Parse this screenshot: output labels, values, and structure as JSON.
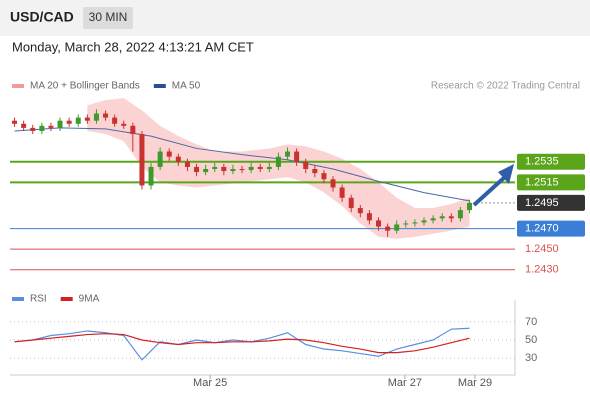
{
  "header": {
    "symbol": "USD/CAD",
    "interval": "30 MIN",
    "timestamp": "Monday, March 28, 2022 4:13:21 AM CET"
  },
  "chart_data": [
    {
      "type": "candlestick",
      "legend": [
        {
          "name": "MA 20 + Bollinger Bands",
          "color": "#f29a9a"
        },
        {
          "name": "MA 50",
          "color": "#2e4f8f"
        }
      ],
      "credit": "Research © 2022 Trading Central",
      "up_color": "#3f9a2c",
      "down_color": "#c8332f",
      "xlim": [
        -0.5,
        55
      ],
      "ylim": [
        1.242,
        1.26
      ],
      "candles": [
        [
          1.2575,
          1.2578,
          1.2569,
          1.2572
        ],
        [
          1.2572,
          1.2575,
          1.2565,
          1.2568
        ],
        [
          1.2568,
          1.2571,
          1.2562,
          1.2565
        ],
        [
          1.2565,
          1.2573,
          1.2562,
          1.257
        ],
        [
          1.257,
          1.2573,
          1.2565,
          1.2568
        ],
        [
          1.2568,
          1.2578,
          1.2565,
          1.2575
        ],
        [
          1.2575,
          1.2578,
          1.2569,
          1.2572
        ],
        [
          1.2572,
          1.2581,
          1.2569,
          1.2578
        ],
        [
          1.2578,
          1.2581,
          1.2572,
          1.2575
        ],
        [
          1.2575,
          1.2586,
          1.2572,
          1.2582
        ],
        [
          1.2582,
          1.2585,
          1.2575,
          1.2578
        ],
        [
          1.2578,
          1.2581,
          1.2569,
          1.2572
        ],
        [
          1.2572,
          1.2575,
          1.2567,
          1.257
        ],
        [
          1.257,
          1.2573,
          1.2545,
          1.2562
        ],
        [
          1.2562,
          1.2565,
          1.2508,
          1.2512
        ],
        [
          1.2512,
          1.2534,
          1.2508,
          1.253
        ],
        [
          1.253,
          1.2549,
          1.2527,
          1.2545
        ],
        [
          1.2545,
          1.2548,
          1.2536,
          1.254
        ],
        [
          1.254,
          1.2543,
          1.2531,
          1.2535
        ],
        [
          1.2535,
          1.2538,
          1.2526,
          1.253
        ],
        [
          1.253,
          1.2533,
          1.2521,
          1.2525
        ],
        [
          1.2525,
          1.2532,
          1.2522,
          1.2528
        ],
        [
          1.2528,
          1.2534,
          1.2525,
          1.253
        ],
        [
          1.253,
          1.2533,
          1.2522,
          1.2526
        ],
        [
          1.2526,
          1.2532,
          1.2523,
          1.2528
        ],
        [
          1.2528,
          1.2531,
          1.2524,
          1.2527
        ],
        [
          1.2527,
          1.2534,
          1.2524,
          1.253
        ],
        [
          1.253,
          1.2533,
          1.2525,
          1.2528
        ],
        [
          1.2528,
          1.2534,
          1.2525,
          1.253
        ],
        [
          1.253,
          1.2544,
          1.2527,
          1.254
        ],
        [
          1.254,
          1.2549,
          1.2537,
          1.2545
        ],
        [
          1.2545,
          1.2548,
          1.2531,
          1.2535
        ],
        [
          1.2535,
          1.2538,
          1.2524,
          1.2528
        ],
        [
          1.2528,
          1.2531,
          1.252,
          1.2524
        ],
        [
          1.2524,
          1.2527,
          1.2514,
          1.2518
        ],
        [
          1.2518,
          1.2521,
          1.2506,
          1.251
        ],
        [
          1.251,
          1.2513,
          1.2496,
          1.25
        ],
        [
          1.25,
          1.2503,
          1.2486,
          1.249
        ],
        [
          1.249,
          1.2493,
          1.2481,
          1.2485
        ],
        [
          1.2485,
          1.2488,
          1.2474,
          1.2478
        ],
        [
          1.2478,
          1.2481,
          1.2468,
          1.2472
        ],
        [
          1.2472,
          1.2475,
          1.2462,
          1.2468
        ],
        [
          1.2468,
          1.2478,
          1.2465,
          1.2474
        ],
        [
          1.2474,
          1.2478,
          1.2471,
          1.2475
        ],
        [
          1.2475,
          1.2479,
          1.2472,
          1.2476
        ],
        [
          1.2476,
          1.2481,
          1.2473,
          1.2478
        ],
        [
          1.2478,
          1.2483,
          1.2475,
          1.248
        ],
        [
          1.248,
          1.2485,
          1.2477,
          1.2482
        ],
        [
          1.2482,
          1.2485,
          1.2476,
          1.248
        ],
        [
          1.248,
          1.2491,
          1.2477,
          1.2488
        ],
        [
          1.2488,
          1.2498,
          1.2485,
          1.2495
        ]
      ],
      "bands": {
        "color": "#fbd3d3",
        "x": [
          8,
          10,
          12,
          14,
          16,
          18,
          20,
          22,
          25,
          28,
          30,
          32,
          34,
          36,
          38,
          40,
          42,
          44,
          46,
          48,
          50
        ],
        "upper": [
          1.259,
          1.2595,
          1.2597,
          1.2585,
          1.257,
          1.256,
          1.2552,
          1.2545,
          1.2545,
          1.2548,
          1.2552,
          1.255,
          1.2545,
          1.2538,
          1.2528,
          1.2515,
          1.25,
          1.249,
          1.249,
          1.2494,
          1.25
        ],
        "lower": [
          1.2565,
          1.2562,
          1.2555,
          1.253,
          1.2515,
          1.2512,
          1.251,
          1.2512,
          1.2515,
          1.2518,
          1.252,
          1.2515,
          1.2505,
          1.2492,
          1.2475,
          1.2462,
          1.246,
          1.2462,
          1.2465,
          1.2468,
          1.2472
        ]
      },
      "ma50": {
        "color": "#4a6aa8",
        "x": [
          0,
          5,
          10,
          15,
          20,
          25,
          30,
          35,
          40,
          45,
          50
        ],
        "values": [
          1.2565,
          1.2568,
          1.2567,
          1.256,
          1.2548,
          1.2542,
          1.2537,
          1.2528,
          1.2516,
          1.2505,
          1.2497
        ]
      },
      "levels": [
        {
          "value": 1.2535,
          "label": "1.2535",
          "color": "#5aa51a",
          "boxed": true,
          "line": "solid"
        },
        {
          "value": 1.2515,
          "label": "1.2515",
          "color": "#5aa51a",
          "boxed": true,
          "line": "solid"
        },
        {
          "value": 1.2495,
          "label": "1.2495",
          "color": "#333333",
          "boxed": true,
          "line": "dotted"
        },
        {
          "value": 1.247,
          "label": "1.2470",
          "color": "#3a7fd5",
          "boxed": true,
          "line": "solid"
        },
        {
          "value": 1.245,
          "label": "1.2450",
          "color": "#d9534f",
          "boxed": false,
          "line": "solid"
        },
        {
          "value": 1.243,
          "label": "1.2430",
          "color": "#d9534f",
          "boxed": false,
          "line": "solid"
        }
      ]
    },
    {
      "type": "line",
      "xlim": [
        -0.5,
        55
      ],
      "ylim": [
        19,
        81
      ],
      "yticks": [
        30,
        50,
        70
      ],
      "xticks": [
        {
          "value": 21.5,
          "label": "Mar 25"
        },
        {
          "value": 42.9,
          "label": "Mar 27"
        },
        {
          "value": 50.6,
          "label": "Mar 29"
        }
      ],
      "x": [
        0,
        2,
        4,
        6,
        8,
        10,
        12,
        14,
        16,
        18,
        20,
        22,
        24,
        26,
        28,
        30,
        32,
        34,
        36,
        38,
        40,
        42,
        44,
        46,
        48,
        50
      ],
      "series": [
        {
          "name": "RSI",
          "color": "#5b8de0",
          "values": [
            48,
            50,
            55,
            57,
            60,
            58,
            55,
            28,
            48,
            45,
            50,
            47,
            50,
            48,
            52,
            58,
            45,
            40,
            38,
            35,
            32,
            40,
            45,
            50,
            62,
            63
          ]
        },
        {
          "name": "9MA",
          "color": "#d42020",
          "values": [
            48,
            50,
            52,
            54,
            56,
            57,
            56,
            50,
            47,
            45,
            47,
            47,
            48,
            48,
            49,
            51,
            50,
            47,
            43,
            40,
            36,
            36,
            38,
            42,
            47,
            52
          ]
        }
      ]
    }
  ]
}
